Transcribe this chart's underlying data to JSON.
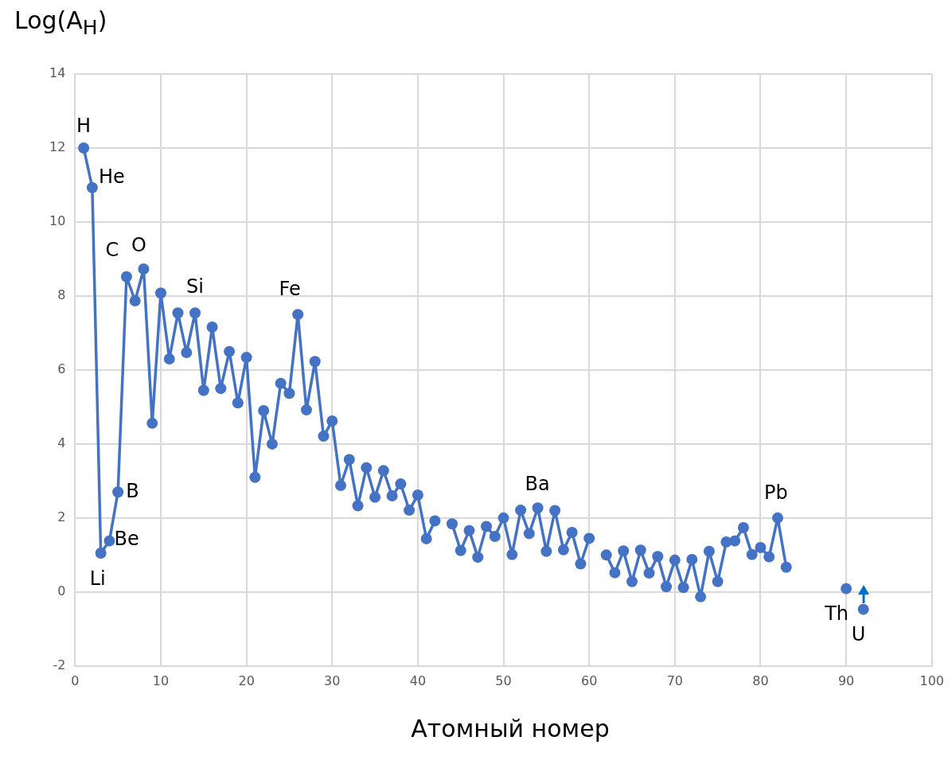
{
  "chart_data": {
    "type": "line",
    "ylabel": "Log(A$_{H}$)",
    "xlabel": "Атомный номер",
    "x": [
      1,
      2,
      3,
      4,
      5,
      6,
      7,
      8,
      9,
      10,
      11,
      12,
      13,
      14,
      15,
      16,
      17,
      18,
      19,
      20,
      21,
      22,
      23,
      24,
      25,
      26,
      27,
      28,
      29,
      30,
      31,
      32,
      33,
      34,
      35,
      36,
      37,
      38,
      39,
      40,
      41,
      42,
      43,
      44,
      45,
      46,
      47,
      48,
      49,
      50,
      51,
      52,
      53,
      54,
      55,
      56,
      57,
      58,
      59,
      60,
      61,
      62,
      63,
      64,
      65,
      66,
      67,
      68,
      69,
      70,
      71,
      72,
      73,
      74,
      75,
      76,
      77,
      78,
      79,
      80,
      81,
      82,
      83,
      84,
      85,
      86,
      87,
      88,
      89,
      90,
      91,
      92
    ],
    "series": [
      {
        "color": "#4472c4",
        "values": [
          12.0,
          10.93,
          1.05,
          1.38,
          2.7,
          8.52,
          7.87,
          8.73,
          4.56,
          8.08,
          6.3,
          7.54,
          6.47,
          7.54,
          5.45,
          7.16,
          5.5,
          6.5,
          5.11,
          6.34,
          3.1,
          4.9,
          4.0,
          5.64,
          5.37,
          7.5,
          4.92,
          6.23,
          4.21,
          4.62,
          2.88,
          3.58,
          2.33,
          3.36,
          2.56,
          3.28,
          2.6,
          2.92,
          2.21,
          2.62,
          1.44,
          1.92,
          null,
          1.84,
          1.12,
          1.66,
          0.94,
          1.77,
          1.5,
          2.0,
          1.01,
          2.21,
          1.58,
          2.27,
          1.1,
          2.2,
          1.14,
          1.61,
          0.76,
          1.45,
          null,
          1.0,
          0.52,
          1.11,
          0.28,
          1.13,
          0.51,
          0.96,
          0.14,
          0.86,
          0.12,
          0.88,
          -0.13,
          1.1,
          0.28,
          1.35,
          1.38,
          1.74,
          1.01,
          1.2,
          0.95,
          2.0,
          0.67,
          null,
          null,
          null,
          null,
          null,
          null,
          0.09,
          null,
          -0.47
        ]
      }
    ],
    "xlim": [
      0,
      100
    ],
    "xticks": [
      0,
      10,
      20,
      30,
      40,
      50,
      60,
      70,
      80,
      90,
      100
    ],
    "ylim": [
      -2,
      14
    ],
    "yticks": [
      -2,
      0,
      2,
      4,
      6,
      8,
      10,
      12,
      14
    ],
    "grid": true,
    "legend": false,
    "marker": "circle",
    "line_style": "solid",
    "annotations": [
      {
        "text": "H",
        "x": 1,
        "y": 12.0
      },
      {
        "text": "He",
        "x": 2,
        "y": 10.93
      },
      {
        "text": "Li",
        "x": 3,
        "y": 1.05
      },
      {
        "text": "Be",
        "x": 4,
        "y": 1.38
      },
      {
        "text": "B",
        "x": 5,
        "y": 2.7
      },
      {
        "text": "C",
        "x": 6,
        "y": 8.52
      },
      {
        "text": "O",
        "x": 8,
        "y": 8.73
      },
      {
        "text": "Si",
        "x": 14,
        "y": 7.54
      },
      {
        "text": "Fe",
        "x": 26,
        "y": 7.5
      },
      {
        "text": "Ba",
        "x": 56,
        "y": 2.2
      },
      {
        "text": "Pb",
        "x": 82,
        "y": 2.0
      },
      {
        "text": "Th",
        "x": 90,
        "y": 0.09
      },
      {
        "text": "U",
        "x": 92,
        "y": -0.47
      }
    ]
  }
}
